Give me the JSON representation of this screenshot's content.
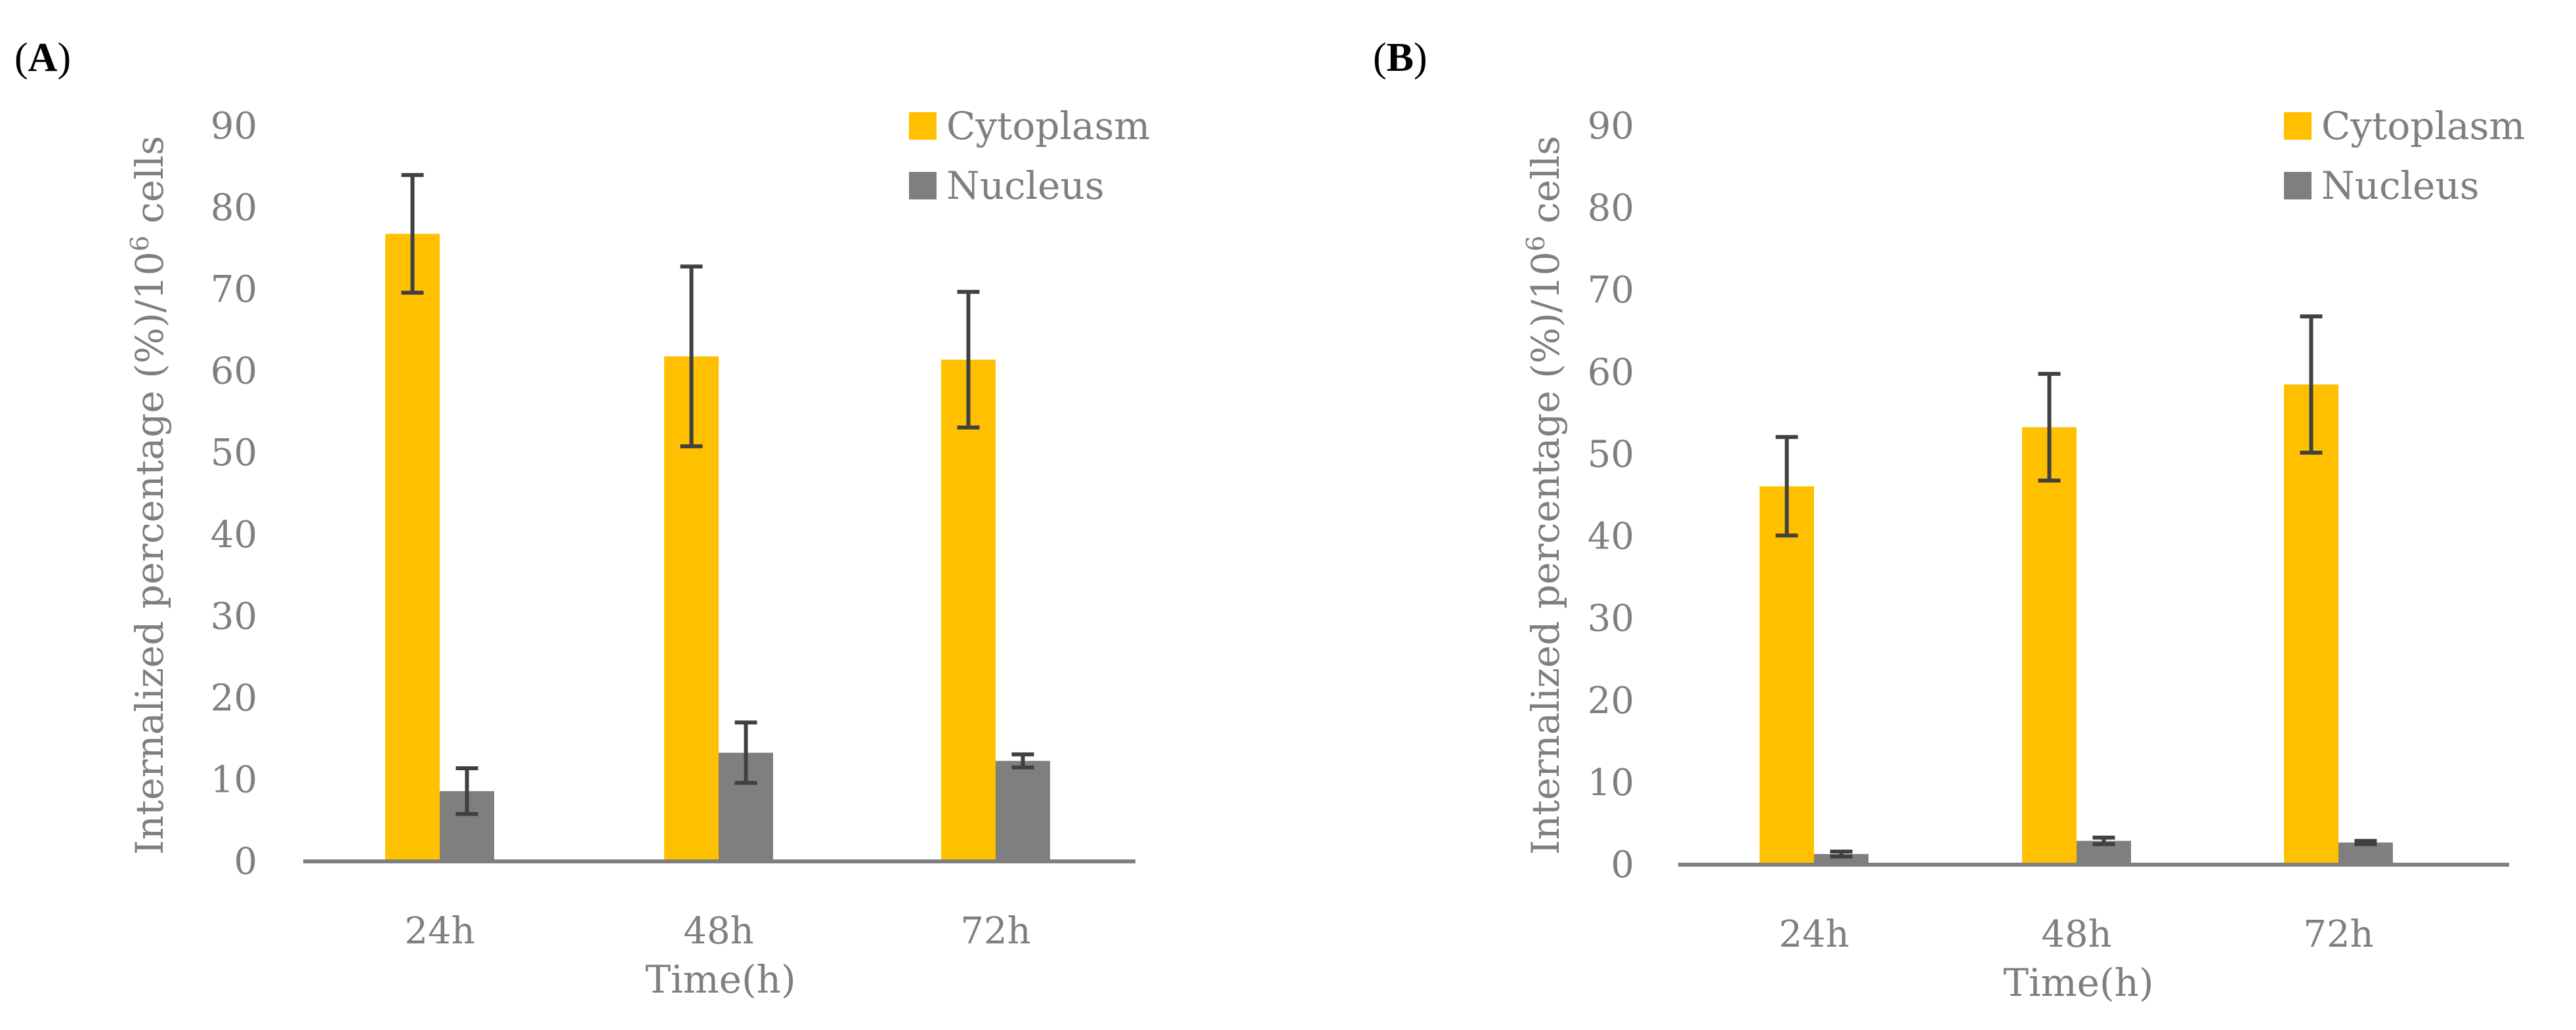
{
  "colors": {
    "cytoplasm": "#ffc000",
    "nucleus": "#7f7f7f",
    "axis": "#7f7f7f",
    "error_bar": "#404040",
    "text": "#7f7f7f"
  },
  "chart_data": [
    {
      "panel": "(A)",
      "panel_label_parts": [
        "(",
        "A",
        ")"
      ],
      "type": "bar",
      "categories": [
        "24h",
        "48h",
        "72h"
      ],
      "series": [
        {
          "name": "Cytoplasm",
          "values": [
            76.8,
            61.8,
            61.4
          ],
          "errors": [
            7.2,
            11.0,
            8.3
          ]
        },
        {
          "name": "Nucleus",
          "values": [
            8.6,
            13.3,
            12.3
          ],
          "errors": [
            2.8,
            3.7,
            0.8
          ]
        }
      ],
      "xlabel": "Time(h)",
      "ylabel": "Internalized percentage (%)/10",
      "ylabel_superscript": "6",
      "ylabel_suffix": " cells",
      "ylim": [
        0,
        90
      ],
      "yticks": [
        0,
        10,
        20,
        30,
        40,
        50,
        60,
        70,
        80,
        90
      ],
      "grid": false,
      "legend": "top-right"
    },
    {
      "panel": "(B)",
      "panel_label_parts": [
        "(",
        "B",
        ")"
      ],
      "type": "bar",
      "categories": [
        "24h",
        "48h",
        "72h"
      ],
      "series": [
        {
          "name": "Cytoplasm",
          "values": [
            46.1,
            53.3,
            58.5
          ],
          "errors": [
            6.0,
            6.5,
            8.3
          ]
        },
        {
          "name": "Nucleus",
          "values": [
            1.3,
            2.9,
            2.7
          ],
          "errors": [
            0.3,
            0.4,
            0.2
          ]
        }
      ],
      "xlabel": "Time(h)",
      "ylabel": "Internalized percentage (%)/10",
      "ylabel_superscript": "6",
      "ylabel_suffix": " cells",
      "ylim": [
        0,
        90
      ],
      "yticks": [
        0,
        10,
        20,
        30,
        40,
        50,
        60,
        70,
        80,
        90
      ],
      "grid": false,
      "legend": "top-right"
    }
  ]
}
